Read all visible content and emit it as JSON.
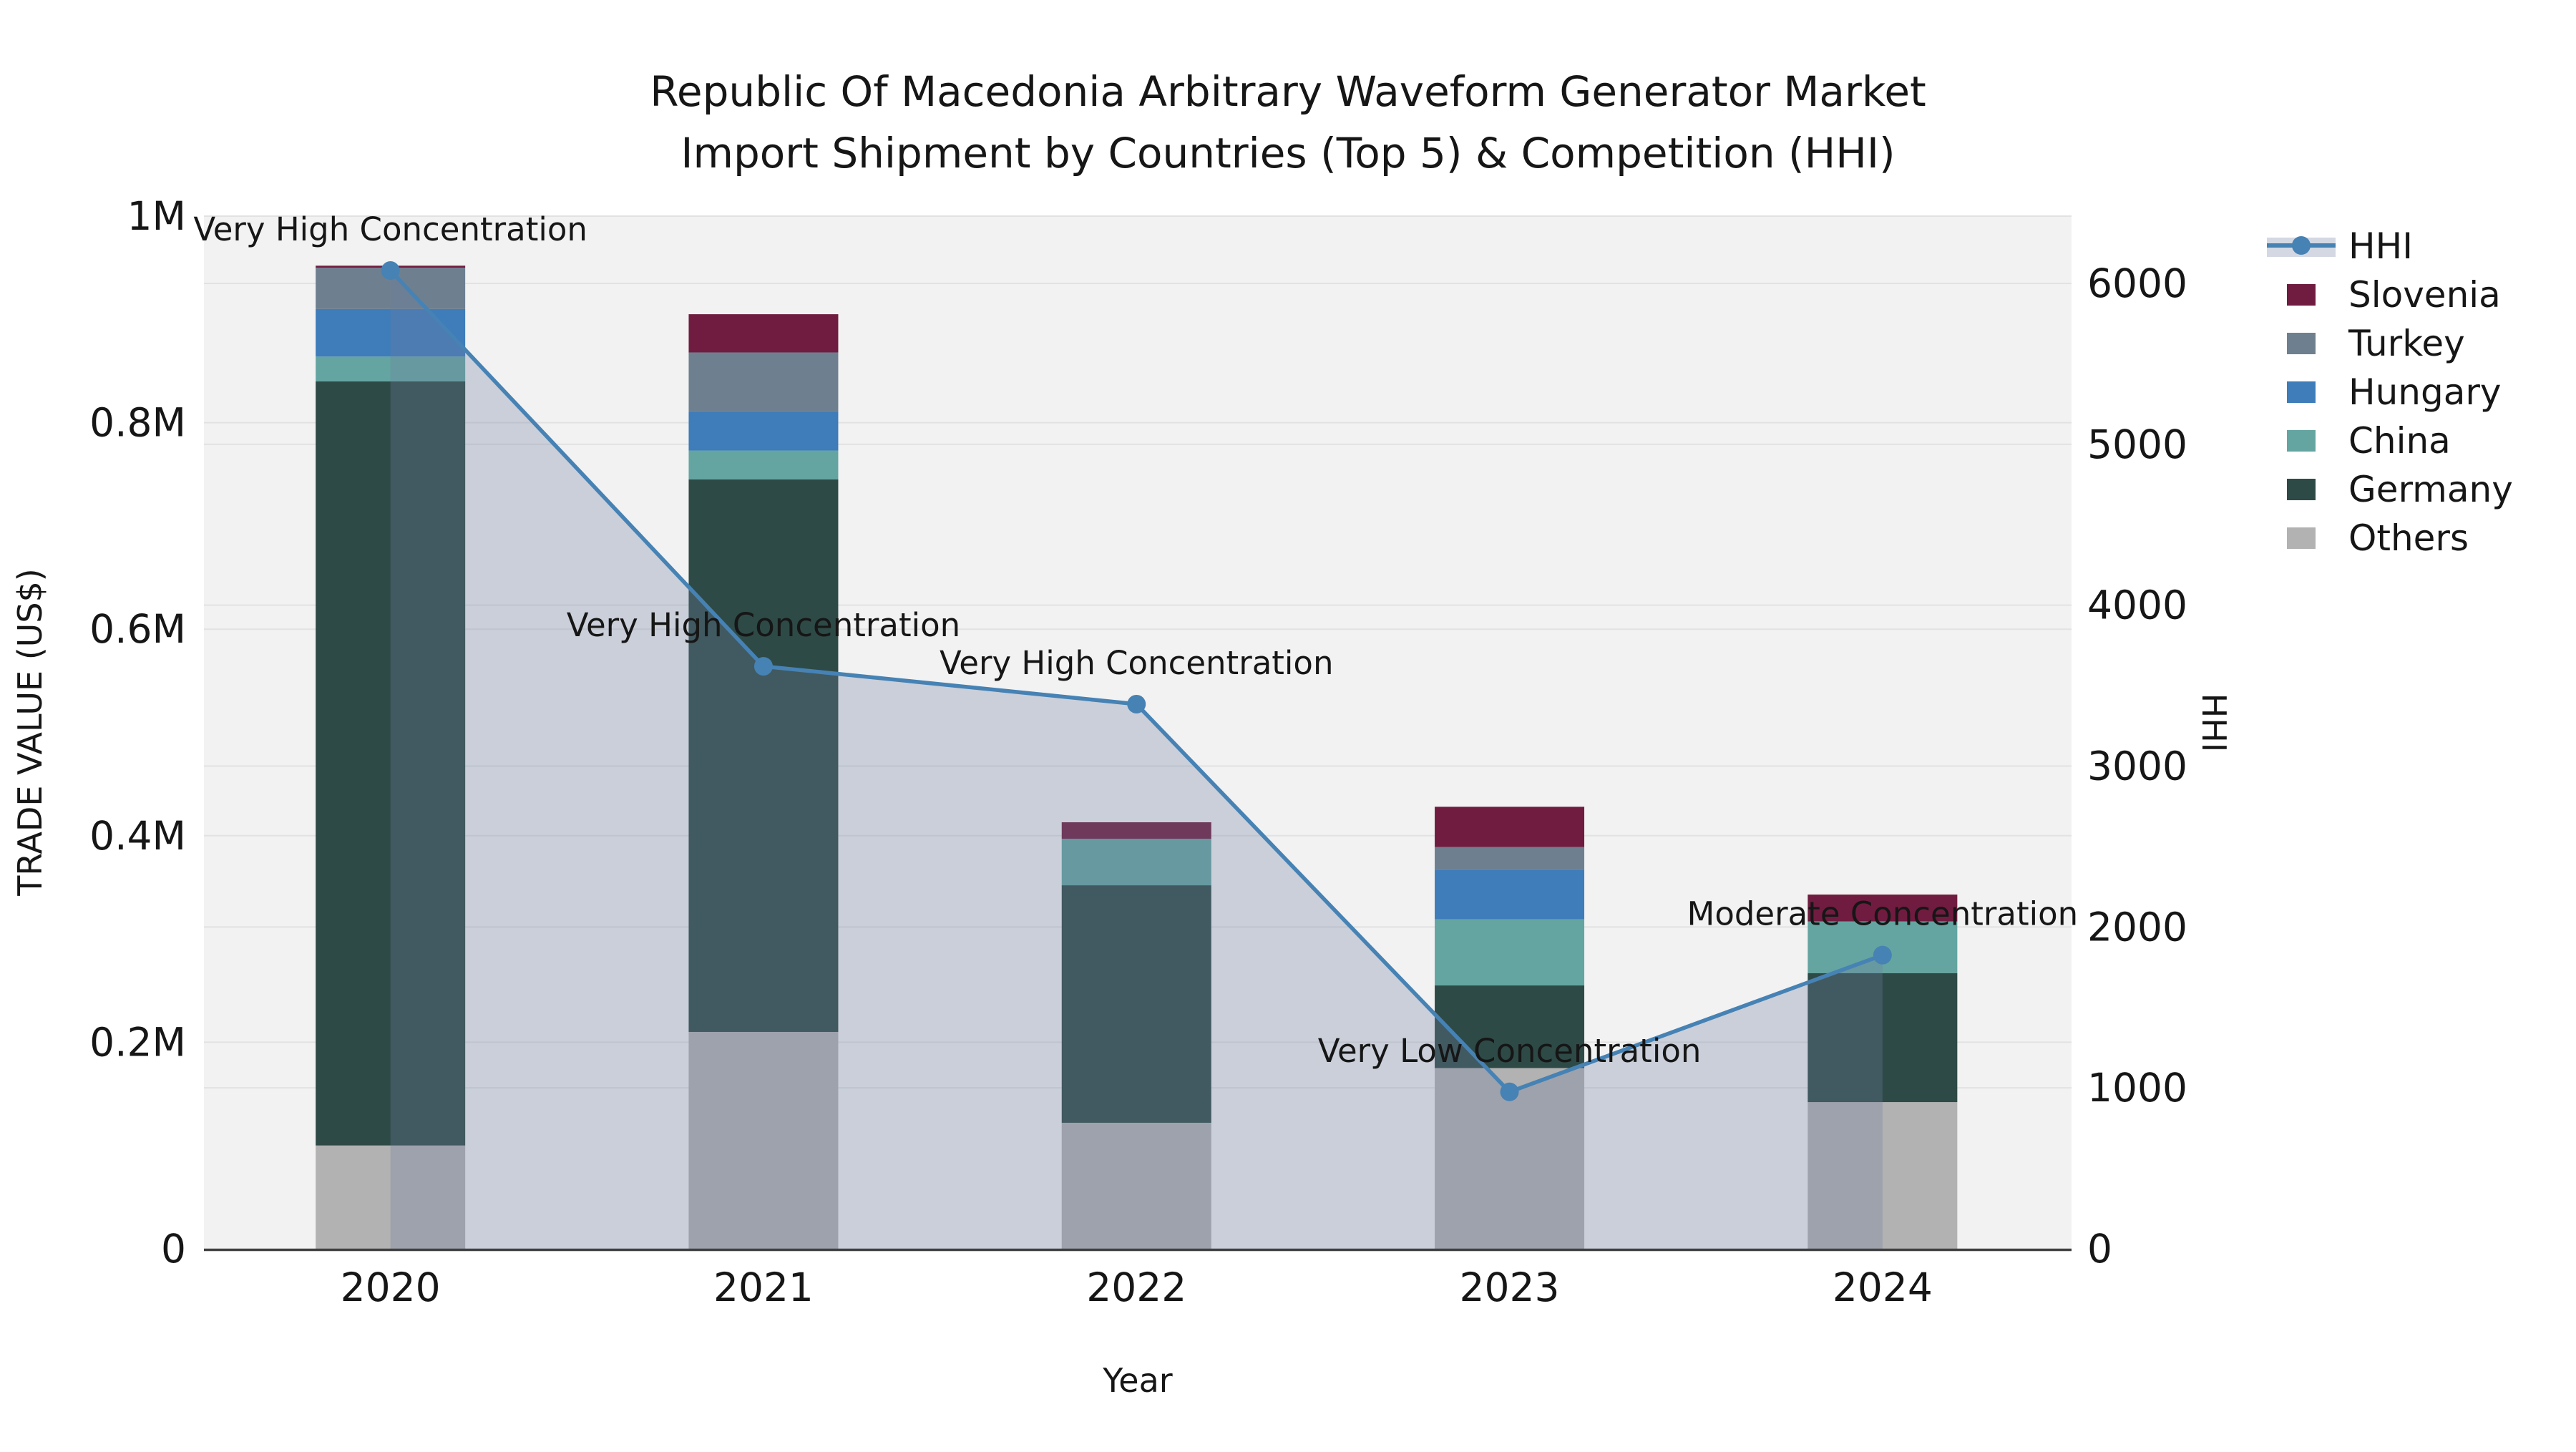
{
  "chart_data": {
    "type": "bar",
    "subtype": "stacked-bars-with-line-overlay-and-area-fill",
    "title_line1": "Republic Of Macedonia Arbitrary Waveform Generator Market",
    "title_line2": "Import Shipment by Countries (Top 5) & Competition (HHI)",
    "xlabel": "Year",
    "ylabel_left": "TRADE VALUE (US$)",
    "ylabel_right": "HHI",
    "categories": [
      "2020",
      "2021",
      "2022",
      "2023",
      "2024"
    ],
    "stack_order_bottom_to_top": [
      "Others",
      "Germany",
      "China",
      "Hungary",
      "Turkey",
      "Slovenia"
    ],
    "series": [
      {
        "name": "Slovenia",
        "color": "#701c40",
        "values": [
          2000,
          37000,
          16000,
          39000,
          26000
        ]
      },
      {
        "name": "Turkey",
        "color": "#6e8090",
        "values": [
          40000,
          57000,
          0,
          22000,
          0
        ]
      },
      {
        "name": "Hungary",
        "color": "#3e7cba",
        "values": [
          46000,
          38000,
          0,
          48000,
          0
        ]
      },
      {
        "name": "China",
        "color": "#64a5a1",
        "values": [
          24000,
          28000,
          45000,
          64000,
          50000
        ]
      },
      {
        "name": "Germany",
        "color": "#2e4a46",
        "values": [
          740000,
          535000,
          230000,
          80000,
          125000
        ]
      },
      {
        "name": "Others",
        "color": "#b2b2b2",
        "values": [
          100000,
          210000,
          122000,
          175000,
          142000
        ]
      }
    ],
    "bar_totals": [
      952000,
      905000,
      413000,
      428000,
      343000
    ],
    "hhi_line": {
      "name": "HHI",
      "color": "#4682b4",
      "area_fill": "rgba(108,126,160,0.30)",
      "values": [
        6080,
        3620,
        3385,
        975,
        1825
      ]
    },
    "annotations": [
      {
        "year": "2020",
        "text": "Very High Concentration"
      },
      {
        "year": "2021",
        "text": "Very High Concentration"
      },
      {
        "year": "2022",
        "text": "Very High Concentration"
      },
      {
        "year": "2023",
        "text": "Very Low Concentration"
      },
      {
        "year": "2024",
        "text": "Moderate Concentration"
      }
    ],
    "left_axis": {
      "ticks": [
        {
          "value": 0,
          "label": "0"
        },
        {
          "value": 200000,
          "label": "0.2M"
        },
        {
          "value": 400000,
          "label": "0.4M"
        },
        {
          "value": 600000,
          "label": "0.6M"
        },
        {
          "value": 800000,
          "label": "0.8M"
        },
        {
          "value": 1000000,
          "label": "1M"
        }
      ],
      "max": 1000000
    },
    "right_axis": {
      "ticks": [
        {
          "value": 0,
          "label": "0"
        },
        {
          "value": 1000,
          "label": "1000"
        },
        {
          "value": 2000,
          "label": "2000"
        },
        {
          "value": 3000,
          "label": "3000"
        },
        {
          "value": 4000,
          "label": "4000"
        },
        {
          "value": 5000,
          "label": "5000"
        },
        {
          "value": 6000,
          "label": "6000"
        }
      ],
      "max": 6000
    },
    "legend_order": [
      "HHI",
      "Slovenia",
      "Turkey",
      "Hungary",
      "China",
      "Germany",
      "Others"
    ],
    "colors": {
      "plot_background": "#f2f2f2",
      "gridline": "#e2e2e2",
      "axis_line": "#404040",
      "text": "#161616"
    }
  }
}
